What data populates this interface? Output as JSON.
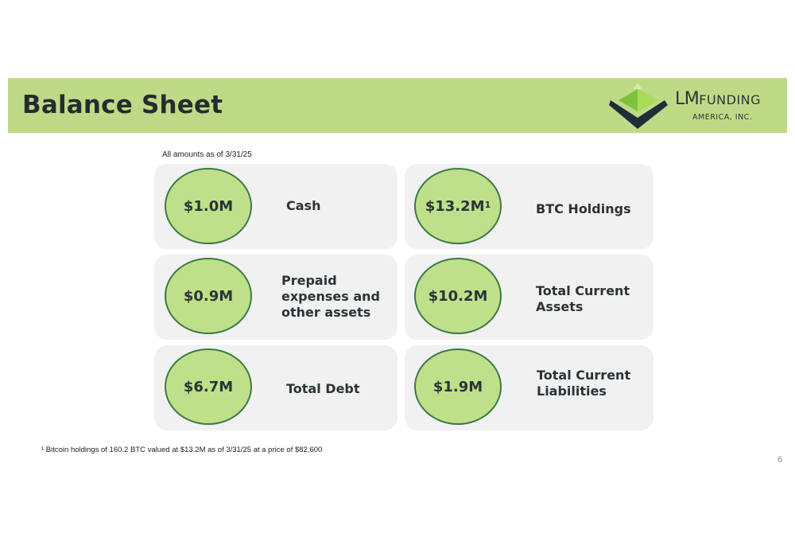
{
  "header": {
    "title": "Balance Sheet",
    "logo": {
      "lm": "LM",
      "funding": "FUNDING",
      "sub": "AMERICA, INC."
    }
  },
  "as_of_note": "All amounts as of 3/31/25",
  "cards": [
    {
      "value": "$1.0M",
      "sup": "",
      "label": "Cash"
    },
    {
      "value": "$13.2M",
      "sup": "1",
      "label": "BTC Holdings"
    },
    {
      "value": "$0.9M",
      "sup": "",
      "label": "Prepaid expenses and other assets"
    },
    {
      "value": "$10.2M",
      "sup": "",
      "label": "Total Current Assets"
    },
    {
      "value": "$6.7M",
      "sup": "",
      "label": "Total Debt"
    },
    {
      "value": "$1.9M",
      "sup": "",
      "label": "Total Current Liabilities"
    }
  ],
  "footnote": "¹ Bitcoin holdings of 160.2 BTC valued at $13.2M as of 3/31/25 at a price of $82,600",
  "page_number": "6",
  "colors": {
    "header_band": "#bfda87",
    "circle_fill": "#bfe08a",
    "circle_border": "#3c7a46",
    "card_bg": "#f1f1f1"
  }
}
